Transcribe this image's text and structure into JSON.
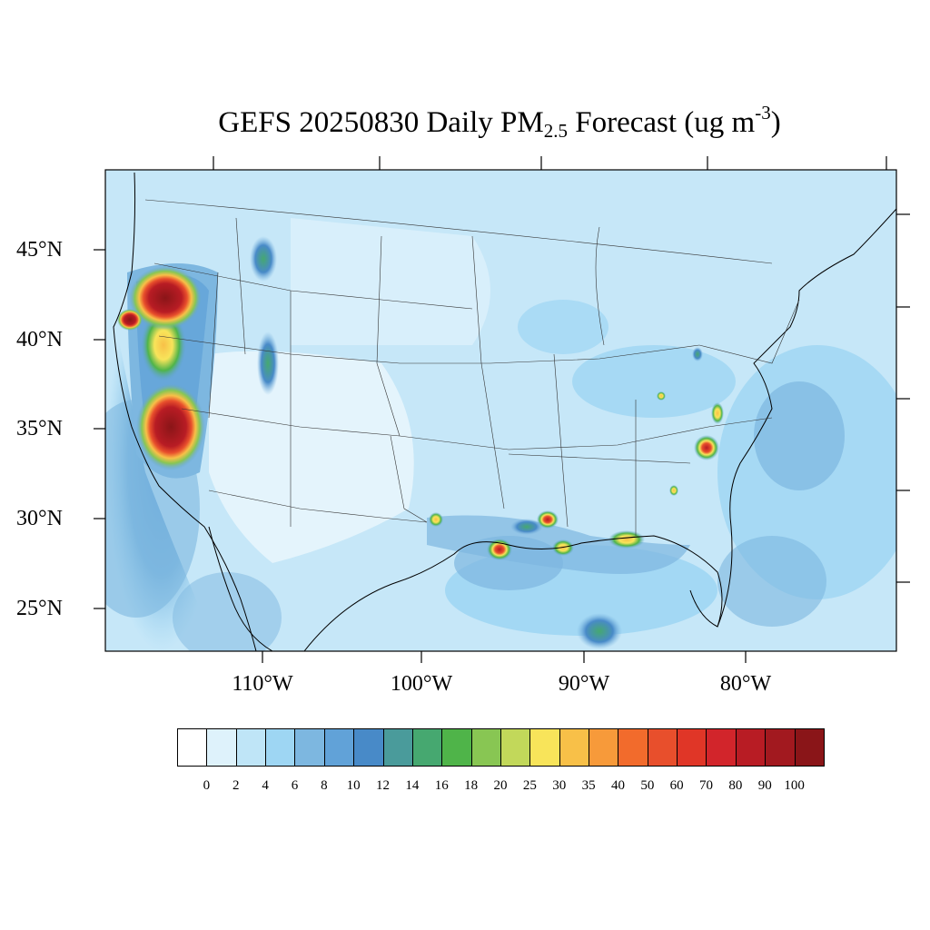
{
  "title": {
    "prefix": "GEFS 20250830 Daily PM",
    "subscript": "2.5",
    "middle": " Forecast (ug m",
    "superscript": "-3",
    "suffix": ")"
  },
  "map": {
    "projection": "lambert-conformal",
    "region": "CONUS",
    "background_color": "#dcf0fa",
    "lat_labels": [
      "45°N",
      "40°N",
      "35°N",
      "30°N",
      "25°N"
    ],
    "lon_labels": [
      "110°W",
      "100°W",
      "90°W",
      "80°W"
    ]
  },
  "colorbar": {
    "levels": [
      "0",
      "2",
      "4",
      "6",
      "8",
      "10",
      "12",
      "14",
      "16",
      "18",
      "20",
      "25",
      "30",
      "35",
      "40",
      "50",
      "60",
      "70",
      "80",
      "90",
      "100"
    ],
    "colors": [
      "#ffffff",
      "#def2fb",
      "#bfe5f7",
      "#9ed6f3",
      "#7db7e0",
      "#61a2d8",
      "#488ac8",
      "#4a9b9b",
      "#46a870",
      "#4fb449",
      "#88c653",
      "#c2d85a",
      "#f8e45a",
      "#f8c048",
      "#f79a3a",
      "#f26b2c",
      "#e84f2c",
      "#e03627",
      "#d2252b",
      "#b81c24",
      "#a2191f",
      "#8a1518"
    ]
  },
  "hotspots": [
    {
      "name": "oregon-fire",
      "intensity": "100"
    },
    {
      "name": "northern-california-fire",
      "intensity": "100"
    },
    {
      "name": "california-coast-fire",
      "intensity": "90"
    },
    {
      "name": "louisiana-hotspot",
      "intensity": "60"
    },
    {
      "name": "louisiana-east-hotspot",
      "intensity": "40"
    },
    {
      "name": "south-carolina-hotspot",
      "intensity": "60"
    },
    {
      "name": "alabama-gulf-hotspot",
      "intensity": "30"
    },
    {
      "name": "mississippi-gulf-hotspot",
      "intensity": "30"
    }
  ]
}
